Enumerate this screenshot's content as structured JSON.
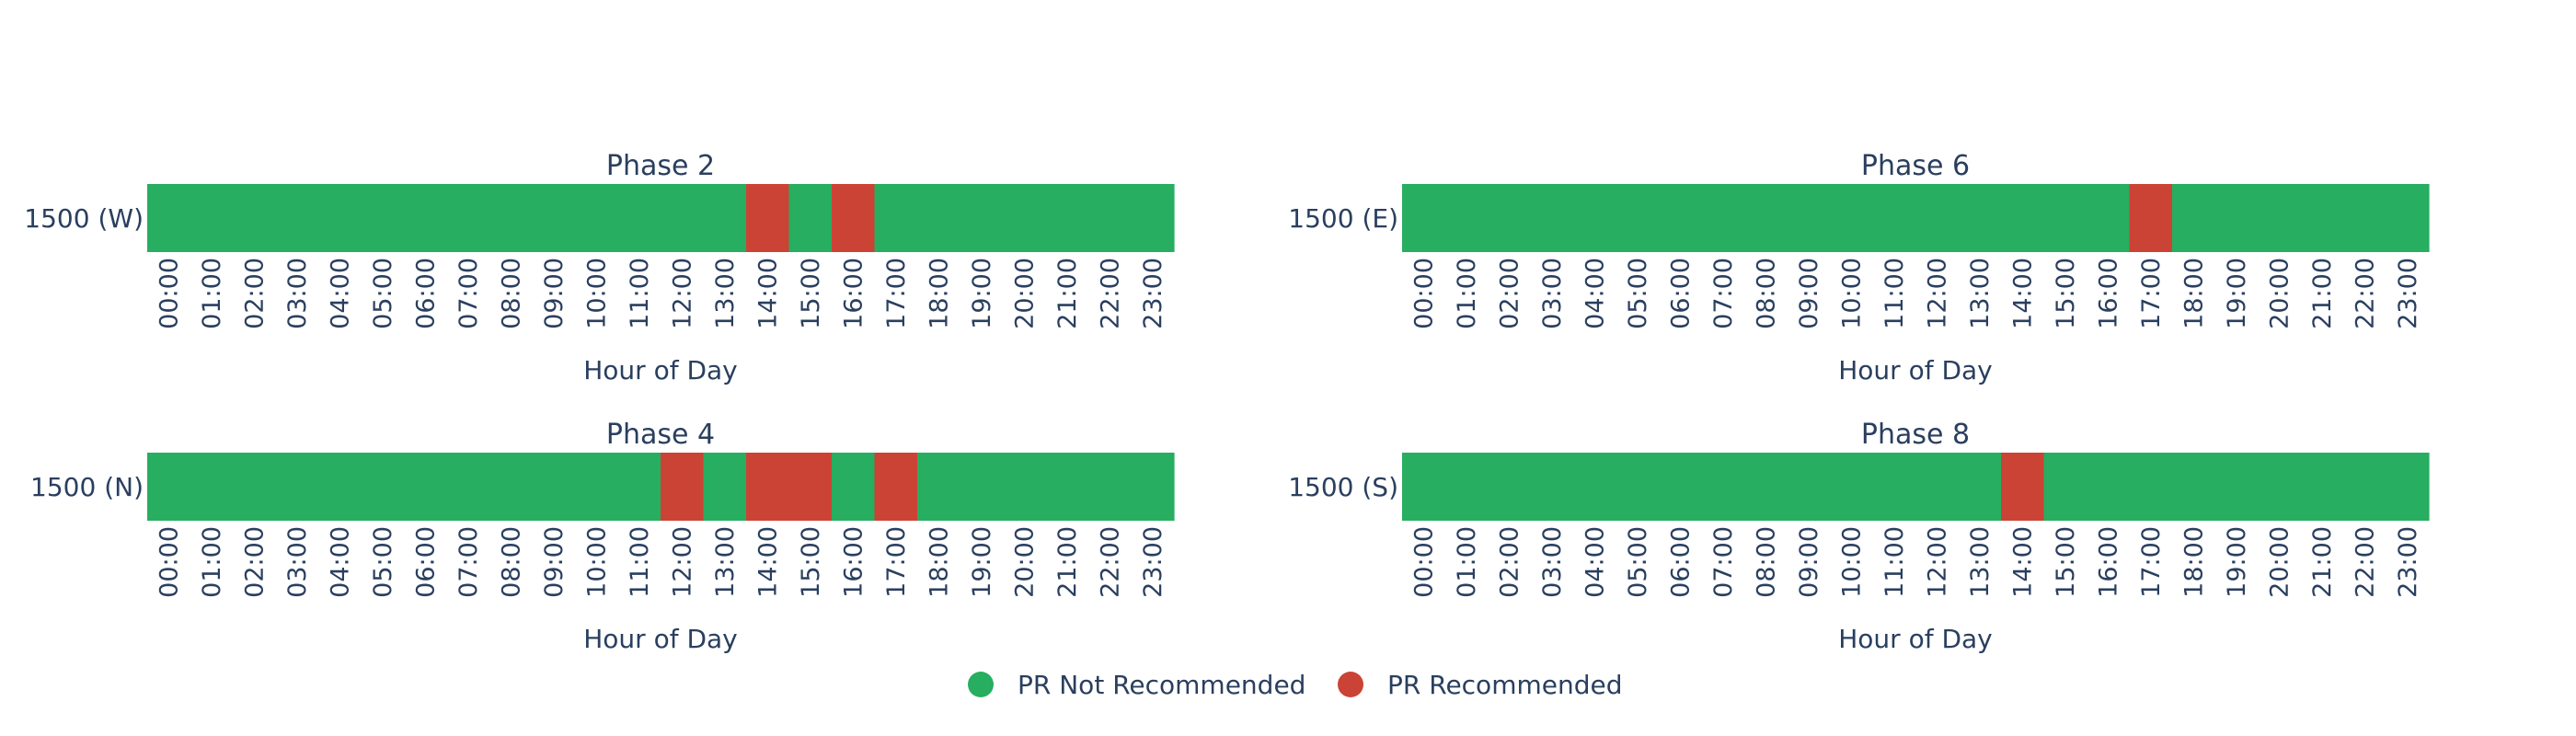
{
  "colors": {
    "not_recommended": "#27ae60",
    "recommended": "#cb4335",
    "text": "#2a3f5f"
  },
  "legend": {
    "items": [
      {
        "label": "PR Not Recommended",
        "color": "#27ae60"
      },
      {
        "label": "PR Recommended",
        "color": "#cb4335"
      }
    ],
    "placement": "bottom-center"
  },
  "chart_data": [
    {
      "type": "heatmap",
      "title": "Phase 2",
      "xlabel": "Hour of Day",
      "row_label": "1500 (W)",
      "x": [
        "00:00",
        "01:00",
        "02:00",
        "03:00",
        "04:00",
        "05:00",
        "06:00",
        "07:00",
        "08:00",
        "09:00",
        "10:00",
        "11:00",
        "12:00",
        "13:00",
        "14:00",
        "15:00",
        "16:00",
        "17:00",
        "18:00",
        "19:00",
        "20:00",
        "21:00",
        "22:00",
        "23:00"
      ],
      "values": [
        0,
        0,
        0,
        0,
        0,
        0,
        0,
        0,
        0,
        0,
        0,
        0,
        0,
        0,
        1,
        0,
        1,
        0,
        0,
        0,
        0,
        0,
        0,
        0
      ]
    },
    {
      "type": "heatmap",
      "title": "Phase 6",
      "xlabel": "Hour of Day",
      "row_label": "1500 (E)",
      "x": [
        "00:00",
        "01:00",
        "02:00",
        "03:00",
        "04:00",
        "05:00",
        "06:00",
        "07:00",
        "08:00",
        "09:00",
        "10:00",
        "11:00",
        "12:00",
        "13:00",
        "14:00",
        "15:00",
        "16:00",
        "17:00",
        "18:00",
        "19:00",
        "20:00",
        "21:00",
        "22:00",
        "23:00"
      ],
      "values": [
        0,
        0,
        0,
        0,
        0,
        0,
        0,
        0,
        0,
        0,
        0,
        0,
        0,
        0,
        0,
        0,
        0,
        1,
        0,
        0,
        0,
        0,
        0,
        0
      ]
    },
    {
      "type": "heatmap",
      "title": "Phase 4",
      "xlabel": "Hour of Day",
      "row_label": "1500 (N)",
      "x": [
        "00:00",
        "01:00",
        "02:00",
        "03:00",
        "04:00",
        "05:00",
        "06:00",
        "07:00",
        "08:00",
        "09:00",
        "10:00",
        "11:00",
        "12:00",
        "13:00",
        "14:00",
        "15:00",
        "16:00",
        "17:00",
        "18:00",
        "19:00",
        "20:00",
        "21:00",
        "22:00",
        "23:00"
      ],
      "values": [
        0,
        0,
        0,
        0,
        0,
        0,
        0,
        0,
        0,
        0,
        0,
        0,
        1,
        0,
        1,
        1,
        0,
        1,
        0,
        0,
        0,
        0,
        0,
        0
      ]
    },
    {
      "type": "heatmap",
      "title": "Phase 8",
      "xlabel": "Hour of Day",
      "row_label": "1500 (S)",
      "x": [
        "00:00",
        "01:00",
        "02:00",
        "03:00",
        "04:00",
        "05:00",
        "06:00",
        "07:00",
        "08:00",
        "09:00",
        "10:00",
        "11:00",
        "12:00",
        "13:00",
        "14:00",
        "15:00",
        "16:00",
        "17:00",
        "18:00",
        "19:00",
        "20:00",
        "21:00",
        "22:00",
        "23:00"
      ],
      "values": [
        0,
        0,
        0,
        0,
        0,
        0,
        0,
        0,
        0,
        0,
        0,
        0,
        0,
        0,
        1,
        0,
        0,
        0,
        0,
        0,
        0,
        0,
        0,
        0
      ]
    }
  ]
}
